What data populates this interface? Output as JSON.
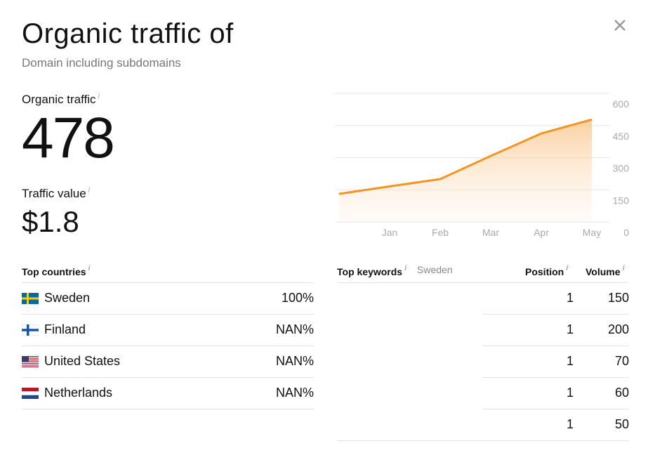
{
  "header": {
    "title": "Organic traffic of",
    "subtitle": "Domain including subdomains"
  },
  "info": "i",
  "metrics": [
    {
      "label": "Organic traffic",
      "value": "478"
    },
    {
      "label": "Traffic value",
      "value": "$1.8"
    }
  ],
  "countries": {
    "title": "Top countries",
    "rows": [
      {
        "name": "Sweden",
        "share": "100%"
      },
      {
        "name": "Finland",
        "share": "NAN%"
      },
      {
        "name": "United States",
        "share": "NAN%"
      },
      {
        "name": "Netherlands",
        "share": "NAN%"
      }
    ]
  },
  "keywords": {
    "title": "Top keywords",
    "country": "Sweden",
    "columns": [
      "Position",
      "Volume"
    ],
    "rows": [
      [
        1,
        150
      ],
      [
        1,
        200
      ],
      [
        1,
        70
      ],
      [
        1,
        60
      ],
      [
        1,
        50
      ]
    ]
  },
  "chart_data": {
    "type": "line",
    "categories": [
      null,
      "Jan",
      "Feb",
      "Mar",
      "Apr",
      "May"
    ],
    "values": [
      131,
      166,
      200,
      308,
      413,
      478
    ],
    "color": "#f7931e",
    "ylim": [
      0,
      600
    ],
    "yticks": [
      0,
      150,
      300,
      450,
      600
    ],
    "grid": true
  }
}
